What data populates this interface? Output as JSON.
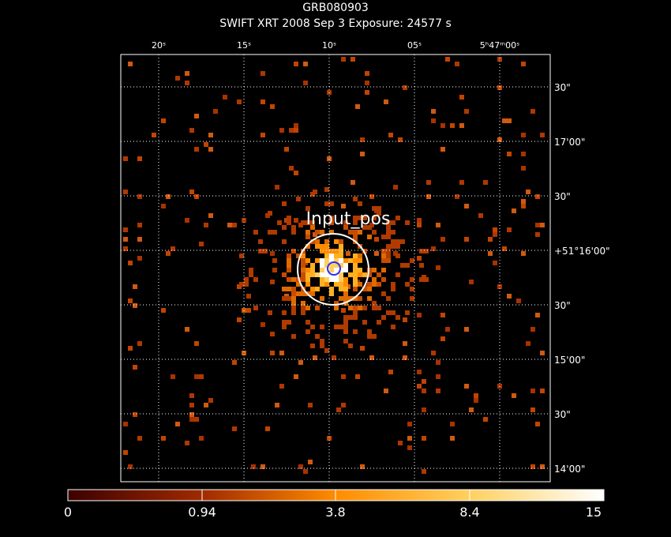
{
  "header": {
    "line1": "GRB080903",
    "line2": "SWIFT XRT   2008 Sep  3    Exposure: 24577 s"
  },
  "axes": {
    "ra_ticks": [
      "20ˢ",
      "15ˢ",
      "10ˢ",
      "05ˢ",
      "5ʰ47ᵐ00ˢ"
    ],
    "dec_ticks": [
      "30\"",
      "17'00\"",
      "30\"",
      "+51°16'00\"",
      "30\"",
      "15'00\"",
      "30\"",
      "14'00\""
    ]
  },
  "region": {
    "label": "Input_pos"
  },
  "colorbar": {
    "labels": [
      "0",
      "0.94",
      "3.8",
      "8.4",
      "15"
    ]
  },
  "colors": {
    "frame": "#ffffff",
    "grid": "#ffffff",
    "region_outer": "#ffffff",
    "region_inner": "#2b2bff"
  }
}
